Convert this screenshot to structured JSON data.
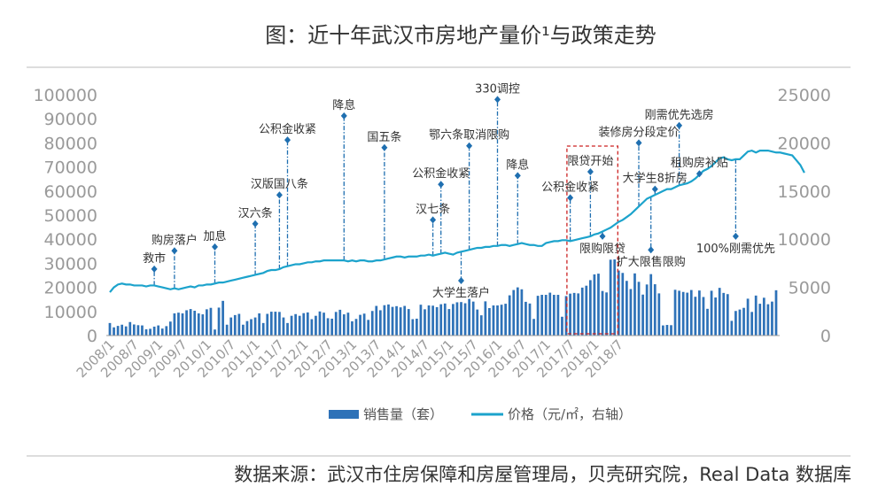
{
  "title": "图：近十年武汉市房地产量价¹与政策走势",
  "source": "数据来源：武汉市住房保障和房屋管理局，贝壳研究院，Real Data 数据库",
  "chart_data": {
    "type": "bar+line",
    "left_ylim": [
      0,
      100000
    ],
    "left_ticks": [
      "0",
      "10000",
      "20000",
      "30000",
      "40000",
      "50000",
      "60000",
      "70000",
      "80000",
      "90000",
      "100000"
    ],
    "right_ylim": [
      0,
      25000
    ],
    "right_ticks": [
      "0",
      "5000",
      "10000",
      "15000",
      "20000",
      "25000"
    ],
    "x_labels": [
      "2008/1",
      "2008/7",
      "2009/1",
      "2009/7",
      "2010/1",
      "2010/7",
      "2011/1",
      "2011/7",
      "2012/1",
      "2012/7",
      "2013/1",
      "2013/7",
      "2014/1",
      "2014/7",
      "2015/1",
      "2015/7",
      "2016/1",
      "2016/7",
      "2017/1",
      "2017/7",
      "2018/1",
      "2018/7"
    ],
    "legend": [
      "销售量（套）",
      "价格（元/㎡，右轴）"
    ],
    "colors": {
      "bar": "#2e72b8",
      "line": "#1ca3cc",
      "annotation": "#1f6fb0",
      "highlight": "#cc2222"
    },
    "series": [
      {
        "name": "销售量（套）",
        "axis": "left",
        "values": [
          5200,
          3400,
          4000,
          4500,
          3800,
          5600,
          4600,
          4300,
          4200,
          2600,
          2800,
          3700,
          4200,
          2900,
          3900,
          5800,
          9200,
          9500,
          9200,
          10500,
          11000,
          10300,
          9200,
          8800,
          10900,
          11500,
          2500,
          11600,
          14400,
          4500,
          7500,
          8500,
          9000,
          4500,
          6000,
          6800,
          7500,
          9200,
          5200,
          9000,
          9900,
          9900,
          9800,
          7500,
          5200,
          8200,
          8900,
          8200,
          9300,
          9600,
          6800,
          8200,
          10000,
          9500,
          7200,
          7000,
          9800,
          10700,
          8800,
          9500,
          5900,
          6900,
          8600,
          9100,
          6500,
          10200,
          12300,
          10500,
          12600,
          12900,
          11900,
          12200,
          11700,
          12300,
          11000,
          6800,
          7000,
          12800,
          10900,
          12500,
          12400,
          11800,
          13000,
          13300,
          11000,
          13100,
          13800,
          13900,
          13400,
          15200,
          14100,
          10800,
          8400,
          14200,
          11400,
          12500,
          12500,
          12800,
          13200,
          16700,
          18900,
          20000,
          19200,
          14000,
          13300,
          6900,
          16500,
          16900,
          16900,
          17800,
          16900,
          16900,
          7800,
          16400,
          17400,
          17700,
          17500,
          19900,
          20700,
          23000,
          25400,
          25700,
          18500,
          17900,
          31500,
          31600,
          27000,
          26000,
          22700,
          19300,
          25800,
          22300,
          17000,
          21200,
          25500,
          21300,
          17500,
          4200,
          4400,
          4300,
          19000,
          18600,
          18100,
          17800,
          18900,
          16100,
          18700,
          16000,
          11100,
          18600,
          15800,
          19800,
          17700,
          17200,
          6100,
          10200,
          10800,
          11500,
          15300,
          9800,
          16600,
          13200,
          15700,
          13000,
          14100,
          18800
        ]
      },
      {
        "name": "价格（元/㎡，右轴）",
        "axis": "right",
        "values": [
          4500,
          5000,
          5300,
          5400,
          5300,
          5300,
          5200,
          5200,
          5200,
          5100,
          5200,
          5200,
          5100,
          5000,
          4900,
          4800,
          4900,
          4800,
          4900,
          5000,
          5100,
          5000,
          5200,
          5200,
          5300,
          5300,
          5400,
          5500,
          5500,
          5600,
          5700,
          5800,
          5900,
          6000,
          6100,
          6200,
          6300,
          6400,
          6500,
          6700,
          6800,
          6800,
          6900,
          7100,
          7200,
          7300,
          7400,
          7400,
          7500,
          7600,
          7600,
          7700,
          7700,
          7800,
          7800,
          7800,
          7800,
          7800,
          7800,
          7700,
          7800,
          7700,
          7800,
          7800,
          7700,
          7700,
          7800,
          7800,
          7900,
          8000,
          8100,
          8200,
          8200,
          8100,
          8200,
          8200,
          8200,
          8300,
          8300,
          8400,
          8300,
          8400,
          8500,
          8600,
          8500,
          8400,
          8600,
          8700,
          8800,
          8900,
          9000,
          9100,
          9100,
          9200,
          9200,
          9300,
          9300,
          9400,
          9400,
          9300,
          9400,
          9500,
          9600,
          9500,
          9400,
          9400,
          9300,
          9300,
          9600,
          9700,
          9800,
          9800,
          9900,
          9900,
          9800,
          9900,
          10000,
          10100,
          10200,
          10300,
          10500,
          10600,
          10800,
          11000,
          11200,
          11500,
          11800,
          12000,
          12300,
          12600,
          13000,
          13400,
          13800,
          14200,
          14400,
          14600,
          14800,
          15000,
          15200,
          15200,
          15400,
          15600,
          15700,
          15800,
          16000,
          16300,
          16700,
          17100,
          17300,
          17600,
          18000,
          18400,
          18500,
          18300,
          18200,
          18300,
          18300,
          18700,
          19100,
          19200,
          19000,
          19200,
          19200,
          19200,
          19100,
          19000,
          19000,
          18900,
          18800,
          18700,
          18200,
          17700,
          16900
        ]
      }
    ],
    "annotations": [
      {
        "label": "救市",
        "month": 11,
        "value": 6900
      },
      {
        "label": "购房落户",
        "month": 16,
        "value": 8800
      },
      {
        "label": "加息",
        "month": 26,
        "value": 9200
      },
      {
        "label": "汉六条",
        "month": 36,
        "value": 11600
      },
      {
        "label": "汉版国八条",
        "month": 42,
        "value": 14600
      },
      {
        "label": "公积金收紧",
        "month": 44,
        "value": 20300
      },
      {
        "label": "降息",
        "month": 58,
        "value": 22800
      },
      {
        "label": "国五条",
        "month": 68,
        "value": 19500
      },
      {
        "label": "汉七条",
        "month": 80,
        "value": 12000
      },
      {
        "label": "公积金收紧",
        "month": 82,
        "value": 15700
      },
      {
        "label": "大学生落户",
        "month": 87,
        "value": 5700
      },
      {
        "label": "鄂六条取消限购",
        "month": 89,
        "value": 19700
      },
      {
        "label": "330调控",
        "month": 96,
        "value": 24500
      },
      {
        "label": "降息",
        "month": 101,
        "value": 16600
      },
      {
        "label": "公积金收紧",
        "month": 114,
        "value": 14300
      },
      {
        "label": "限贷开始",
        "month": 119,
        "value": 17000
      },
      {
        "label": "限购限贷",
        "month": 122,
        "value": 10300
      },
      {
        "label": "装修房分段定价",
        "month": 131,
        "value": 20000
      },
      {
        "label": "扩大限售限购",
        "month": 134,
        "value": 8900
      },
      {
        "label": "大学生8折房",
        "month": 135,
        "value": 15200
      },
      {
        "label": "刚需优先选房",
        "month": 141,
        "value": 21800
      },
      {
        "label": "租购房补贴",
        "month": 146,
        "value": 16800
      },
      {
        "label": "100%刚需优先",
        "month": 155,
        "value": 10300
      }
    ],
    "highlight_months": [
      114,
      125
    ]
  }
}
